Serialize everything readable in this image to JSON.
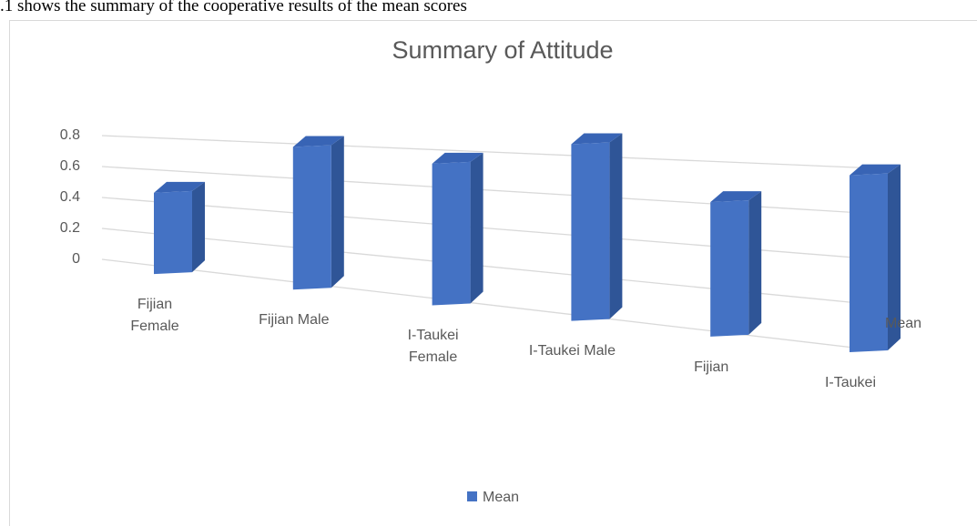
{
  "caption": ".1 shows the summary of the cooperative results of the mean scores",
  "chart_data": {
    "type": "bar3d",
    "title": "Summary of Attitude",
    "categories": [
      "Fijian Female",
      "Fijian Male",
      "I-Taukei Female",
      "I-Taukei Male",
      "Fijian",
      "I-Taukei"
    ],
    "series": [
      {
        "name": "Mean",
        "color": "#4472c4",
        "values": [
          0.4,
          0.65,
          0.6,
          0.7,
          0.5,
          0.62
        ]
      }
    ],
    "ylim": [
      0,
      0.8
    ],
    "yticks": [
      0,
      0.2,
      0.4,
      0.6,
      0.8
    ],
    "grid": true,
    "legend": "bottom"
  }
}
